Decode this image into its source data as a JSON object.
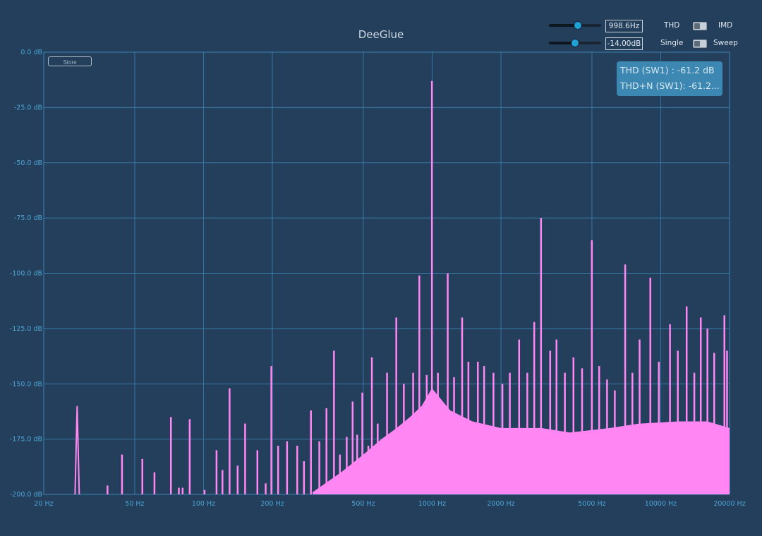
{
  "app": {
    "title": "DeeGlue"
  },
  "controls": {
    "frequency": {
      "value": "998.6Hz",
      "level": 0.55
    },
    "amplitude": {
      "value": "-14.00dB",
      "level": 0.5
    },
    "mode_toggle": {
      "left_label": "THD",
      "right_label": "IMD"
    },
    "run_toggle": {
      "left_label": "Single",
      "right_label": "Sweep"
    },
    "store_label": "Store"
  },
  "readout": {
    "thd": "THD (SW1) : -61.2 dB",
    "thd_n": "THD+N (SW1): -61.2..."
  },
  "colors": {
    "background": "#243f5c",
    "grid": "#3b84b3",
    "axis_text": "#4ba3d3",
    "spectrum": "#ff86f3",
    "panel": "#3c88b2"
  },
  "chart_data": {
    "type": "bar",
    "x_scale": "log",
    "xlim": [
      20,
      20000
    ],
    "ylim": [
      -200,
      0
    ],
    "x_tick_labels": [
      "20 Hz",
      "50 Hz",
      "100 Hz",
      "200 Hz",
      "500 Hz",
      "1000 Hz",
      "2000 Hz",
      "5000 Hz",
      "10000 Hz",
      "20000 Hz"
    ],
    "y_tick_labels": [
      "0.0 dB",
      "-25.0 dB",
      "-50.0 dB",
      "-75.0 dB",
      "-100.0 dB",
      "-125.0 dB",
      "-150.0 dB",
      "-175.0 dB",
      "-200.0 dB"
    ],
    "grid": true,
    "series": [
      {
        "peaks": [
          {
            "x": 28,
            "y": -160
          },
          {
            "x": 38,
            "y": -196
          },
          {
            "x": 44,
            "y": -182
          },
          {
            "x": 54,
            "y": -184
          },
          {
            "x": 61,
            "y": -190
          },
          {
            "x": 72,
            "y": -165
          },
          {
            "x": 78,
            "y": -197
          },
          {
            "x": 81,
            "y": -197
          },
          {
            "x": 87,
            "y": -166
          },
          {
            "x": 101,
            "y": -198
          },
          {
            "x": 114,
            "y": -180
          },
          {
            "x": 121,
            "y": -189
          },
          {
            "x": 130,
            "y": -152
          },
          {
            "x": 141,
            "y": -187
          },
          {
            "x": 152,
            "y": -168
          },
          {
            "x": 172,
            "y": -180
          },
          {
            "x": 187,
            "y": -195
          },
          {
            "x": 198,
            "y": -142
          },
          {
            "x": 212,
            "y": -178
          },
          {
            "x": 232,
            "y": -176
          },
          {
            "x": 257,
            "y": -178
          },
          {
            "x": 275,
            "y": -185
          },
          {
            "x": 295,
            "y": -162
          },
          {
            "x": 321,
            "y": -176
          },
          {
            "x": 345,
            "y": -161
          },
          {
            "x": 372,
            "y": -135
          },
          {
            "x": 395,
            "y": -182
          },
          {
            "x": 423,
            "y": -174
          },
          {
            "x": 449,
            "y": -158
          },
          {
            "x": 470,
            "y": -173
          },
          {
            "x": 495,
            "y": -154
          },
          {
            "x": 526,
            "y": -178
          },
          {
            "x": 545,
            "y": -138
          },
          {
            "x": 578,
            "y": -168
          },
          {
            "x": 635,
            "y": -145
          },
          {
            "x": 697,
            "y": -120
          },
          {
            "x": 752,
            "y": -150
          },
          {
            "x": 826,
            "y": -145
          },
          {
            "x": 879,
            "y": -101
          },
          {
            "x": 947,
            "y": -146
          },
          {
            "x": 998,
            "y": -13
          },
          {
            "x": 1060,
            "y": -145
          },
          {
            "x": 1170,
            "y": -100
          },
          {
            "x": 1247,
            "y": -147
          },
          {
            "x": 1353,
            "y": -120
          },
          {
            "x": 1441,
            "y": -140
          },
          {
            "x": 1585,
            "y": -140
          },
          {
            "x": 1688,
            "y": -142
          },
          {
            "x": 1855,
            "y": -145
          },
          {
            "x": 2030,
            "y": -150
          },
          {
            "x": 2187,
            "y": -145
          },
          {
            "x": 2402,
            "y": -130
          },
          {
            "x": 2608,
            "y": -145
          },
          {
            "x": 2797,
            "y": -122
          },
          {
            "x": 2995,
            "y": -75
          },
          {
            "x": 3284,
            "y": -135
          },
          {
            "x": 3500,
            "y": -130
          },
          {
            "x": 3809,
            "y": -145
          },
          {
            "x": 4152,
            "y": -138
          },
          {
            "x": 4529,
            "y": -143
          },
          {
            "x": 4997,
            "y": -85
          },
          {
            "x": 5380,
            "y": -142
          },
          {
            "x": 5822,
            "y": -148
          },
          {
            "x": 6297,
            "y": -153
          },
          {
            "x": 6990,
            "y": -96
          },
          {
            "x": 7518,
            "y": -145
          },
          {
            "x": 8084,
            "y": -130
          },
          {
            "x": 9006,
            "y": -102
          },
          {
            "x": 9811,
            "y": -140
          },
          {
            "x": 10978,
            "y": -123
          },
          {
            "x": 11879,
            "y": -135
          },
          {
            "x": 12986,
            "y": -115
          },
          {
            "x": 14026,
            "y": -145
          },
          {
            "x": 14970,
            "y": -120
          },
          {
            "x": 16006,
            "y": -125
          },
          {
            "x": 17136,
            "y": -136
          },
          {
            "x": 18989,
            "y": -119
          },
          {
            "x": 19500,
            "y": -135
          }
        ],
        "noise_floor": [
          {
            "x": 300,
            "y": -199
          },
          {
            "x": 400,
            "y": -190
          },
          {
            "x": 500,
            "y": -182
          },
          {
            "x": 600,
            "y": -175
          },
          {
            "x": 700,
            "y": -170
          },
          {
            "x": 800,
            "y": -165
          },
          {
            "x": 900,
            "y": -160
          },
          {
            "x": 998,
            "y": -152
          },
          {
            "x": 1200,
            "y": -162
          },
          {
            "x": 1500,
            "y": -167
          },
          {
            "x": 2000,
            "y": -170
          },
          {
            "x": 3000,
            "y": -170
          },
          {
            "x": 4000,
            "y": -172
          },
          {
            "x": 6000,
            "y": -170
          },
          {
            "x": 8000,
            "y": -168
          },
          {
            "x": 12000,
            "y": -167
          },
          {
            "x": 16000,
            "y": -167
          },
          {
            "x": 20000,
            "y": -170
          }
        ]
      }
    ]
  }
}
